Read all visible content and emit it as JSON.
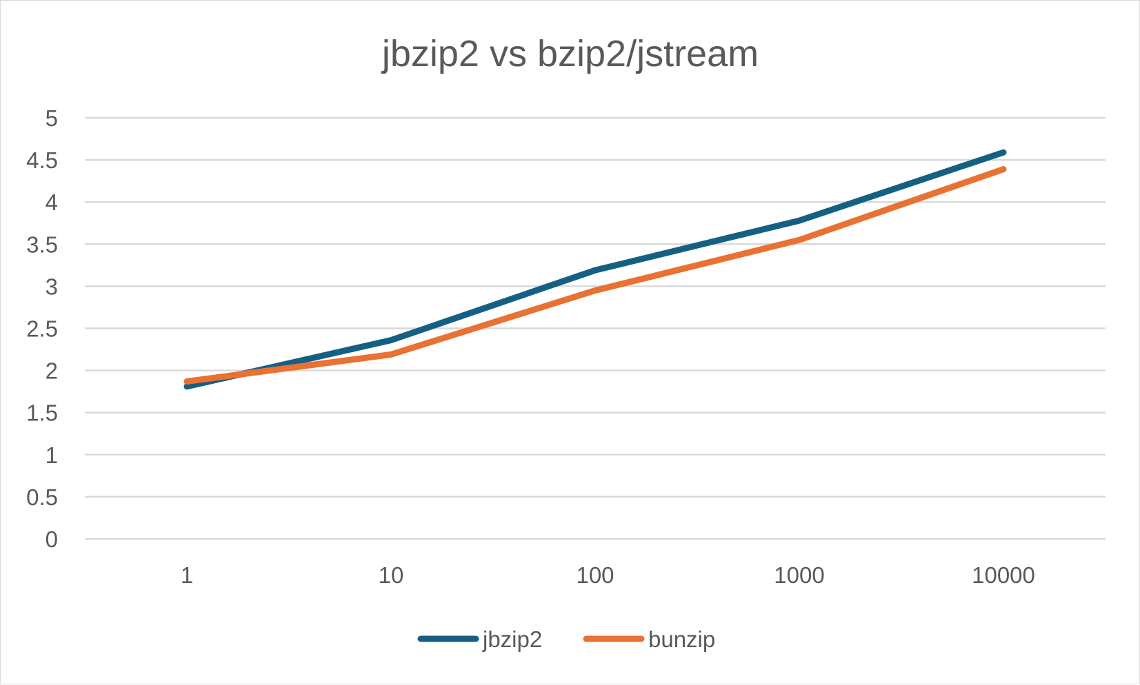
{
  "chart_data": {
    "type": "line",
    "title": "jbzip2 vs bzip2/jstream",
    "xlabel": "",
    "ylabel": "",
    "categories": [
      "1",
      "10",
      "100",
      "1000",
      "10000"
    ],
    "series": [
      {
        "name": "jbzip2",
        "color": "#156082",
        "values": [
          1.81,
          2.36,
          3.19,
          3.78,
          4.59
        ]
      },
      {
        "name": "bunzip",
        "color": "#e97132",
        "values": [
          1.87,
          2.19,
          2.95,
          3.55,
          4.39
        ]
      }
    ],
    "y_ticks": [
      "0",
      "0.5",
      "1",
      "1.5",
      "2",
      "2.5",
      "3",
      "3.5",
      "4",
      "4.5",
      "5"
    ],
    "ylim": [
      0,
      5
    ],
    "grid": true,
    "legend_position": "bottom"
  }
}
